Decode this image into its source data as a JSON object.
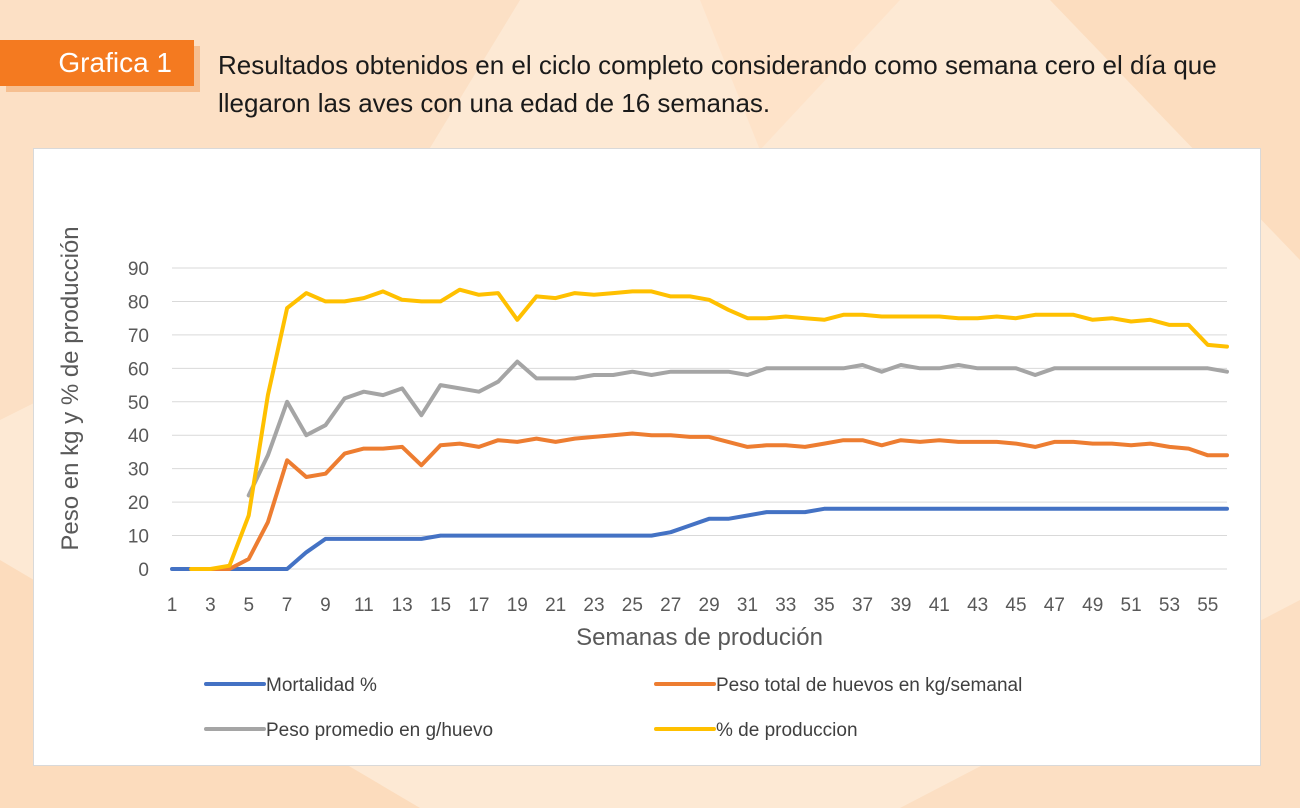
{
  "header": {
    "badge": "Grafica 1",
    "caption": "Resultados obtenidos en el ciclo completo considerando como semana cero el día que llegaron las aves con una edad de 16 semanas."
  },
  "colors": {
    "badge": "#f47a20",
    "background": "#fde9d4"
  },
  "chart_data": {
    "type": "line",
    "title": "",
    "xlabel": "Semanas de produción",
    "ylabel": "Peso en kg y % de producción",
    "ylim": [
      0,
      90
    ],
    "yticks": [
      0,
      10,
      20,
      30,
      40,
      50,
      60,
      70,
      80,
      90
    ],
    "x": [
      1,
      2,
      3,
      4,
      5,
      6,
      7,
      8,
      9,
      10,
      11,
      12,
      13,
      14,
      15,
      16,
      17,
      18,
      19,
      20,
      21,
      22,
      23,
      24,
      25,
      26,
      27,
      28,
      29,
      30,
      31,
      32,
      33,
      34,
      35,
      36,
      37,
      38,
      39,
      40,
      41,
      42,
      43,
      44,
      45,
      46,
      47,
      48,
      49,
      50,
      51,
      52,
      53,
      54,
      55,
      56
    ],
    "xticks": [
      1,
      3,
      5,
      7,
      9,
      11,
      13,
      15,
      17,
      19,
      21,
      23,
      25,
      27,
      29,
      31,
      33,
      35,
      37,
      39,
      41,
      43,
      45,
      47,
      49,
      51,
      53,
      55
    ],
    "grid": true,
    "legend_position": "bottom",
    "series": [
      {
        "name": "Mortalidad %",
        "color": "#4472c4",
        "values": [
          0,
          0,
          0,
          0,
          0,
          0,
          0,
          5,
          9,
          9,
          9,
          9,
          9,
          9,
          10,
          10,
          10,
          10,
          10,
          10,
          10,
          10,
          10,
          10,
          10,
          10,
          11,
          13,
          15,
          15,
          16,
          17,
          17,
          17,
          18,
          18,
          18,
          18,
          18,
          18,
          18,
          18,
          18,
          18,
          18,
          18,
          18,
          18,
          18,
          18,
          18,
          18,
          18,
          18,
          18,
          18
        ]
      },
      {
        "name": "Peso total de huevos en kg/semanal",
        "color": "#ed7d31",
        "values": [
          null,
          0,
          0,
          0,
          3,
          14,
          32.5,
          27.5,
          28.5,
          34.5,
          36,
          36,
          36.5,
          31,
          37,
          37.5,
          36.5,
          38.5,
          38,
          39,
          38,
          39,
          39.5,
          40,
          40.5,
          40,
          40,
          39.5,
          39.5,
          38,
          36.5,
          37,
          37,
          36.5,
          37.5,
          38.5,
          38.5,
          37,
          38.5,
          38,
          38.5,
          38,
          38,
          38,
          37.5,
          36.5,
          38,
          38,
          37.5,
          37.5,
          37,
          37.5,
          36.5,
          36,
          34,
          34
        ]
      },
      {
        "name": "Peso promedio en g/huevo",
        "color": "#a5a5a5",
        "values": [
          null,
          null,
          null,
          null,
          22,
          34,
          50,
          40,
          43,
          51,
          53,
          52,
          54,
          46,
          55,
          54,
          53,
          56,
          62,
          57,
          57,
          57,
          58,
          58,
          59,
          58,
          59,
          59,
          59,
          59,
          58,
          60,
          60,
          60,
          60,
          60,
          61,
          59,
          61,
          60,
          60,
          61,
          60,
          60,
          60,
          58,
          60,
          60,
          60,
          60,
          60,
          60,
          60,
          60,
          60,
          59
        ]
      },
      {
        "name": "% de produccion",
        "color": "#ffc000",
        "values": [
          null,
          0,
          0,
          1,
          16,
          52,
          78,
          82.5,
          80,
          80,
          81,
          83,
          80.5,
          80,
          80,
          83.5,
          82,
          82.5,
          74.5,
          81.5,
          81,
          82.5,
          82,
          82.5,
          83,
          83,
          81.5,
          81.5,
          80.5,
          77.5,
          75,
          75,
          75.5,
          75,
          74.5,
          76,
          76,
          75.5,
          75.5,
          75.5,
          75.5,
          75,
          75,
          75.5,
          75,
          76,
          76,
          76,
          74.5,
          75,
          74,
          74.5,
          73,
          73,
          67,
          66.5
        ]
      }
    ]
  }
}
